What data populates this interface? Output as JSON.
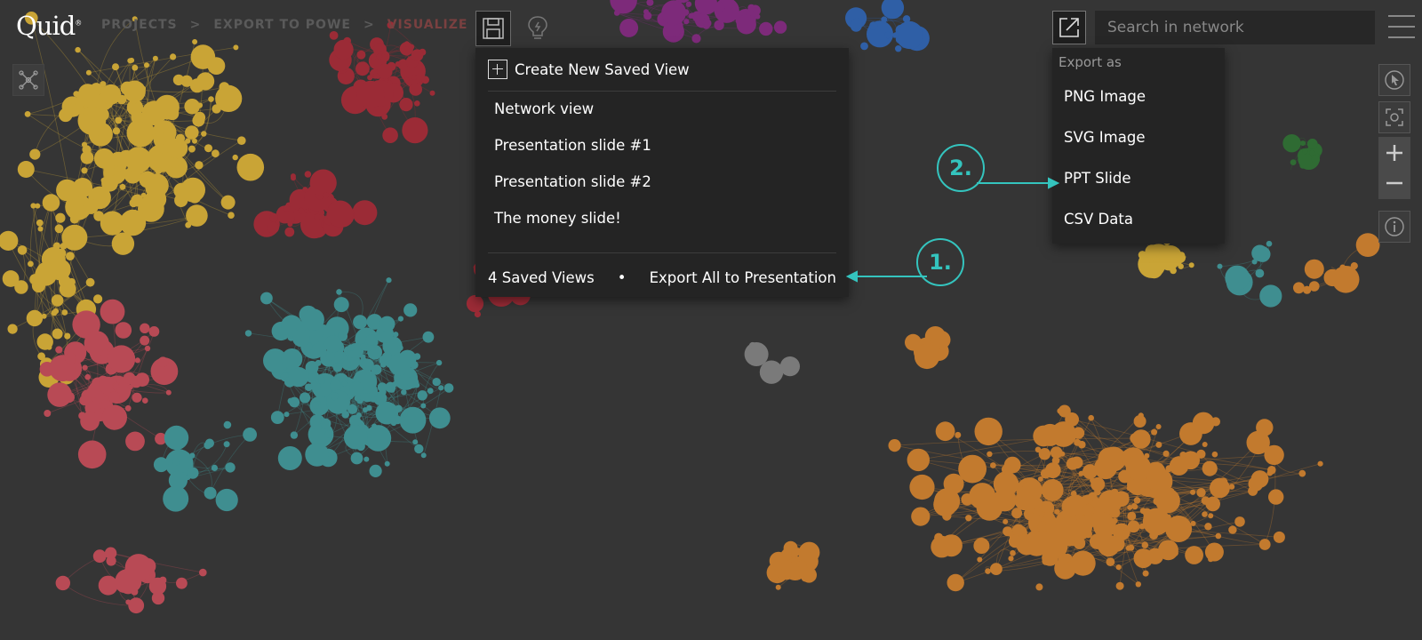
{
  "app": {
    "logo": "Quid",
    "logo_mark": "®"
  },
  "breadcrumb": [
    "PROJECTS",
    ">",
    "EXPORT TO POWE",
    ">",
    "VISUALIZE"
  ],
  "toolbar": {
    "save_icon": "save-icon",
    "insight_icon": "lightbulb-icon",
    "network_icon": "network-icon",
    "export_icon": "export-icon"
  },
  "search": {
    "placeholder": "Search in network",
    "value": ""
  },
  "saved_views_menu": {
    "create_label": "Create New Saved View",
    "views": [
      "Network view",
      "Presentation slide #1",
      "Presentation slide #2",
      "The money slide!"
    ],
    "count_label": "4 Saved Views",
    "dot": "•",
    "export_all_label": "Export All to Presentation"
  },
  "export_menu": {
    "heading": "Export as",
    "items": [
      "PNG Image",
      "SVG Image",
      "PPT Slide",
      "CSV Data"
    ]
  },
  "annotations": [
    "1.",
    "2."
  ],
  "colors": {
    "background": "#353535",
    "accent": "#34c4be",
    "clusters": {
      "yellow": "#c9a436",
      "red": "#9b2b36",
      "salmon": "#b84a55",
      "teal": "#3f8e90",
      "orange": "#c27a2e",
      "purple": "#7d2a7a",
      "blue": "#2f5fa6",
      "green": "#2f6b33",
      "grey": "#7a7a7a"
    }
  }
}
